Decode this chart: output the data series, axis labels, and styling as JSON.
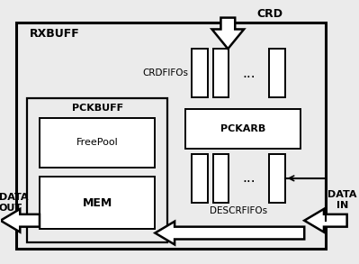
{
  "bg_color": "#ebebeb",
  "box_color": "#ffffff",
  "line_color": "#000000",
  "rxbuff_label": "RXBUFF",
  "crd_label": "CRD",
  "crdfifos_label": "CRDFIFOs",
  "pckarb_label": "PCKARB",
  "descrfifos_label": "DESCRFIFOs",
  "pckbuff_label": "PCKBUFF",
  "freepool_label": "FreePool",
  "mem_label": "MEM",
  "data_out_label": "DATA\nOUT",
  "data_in_label": "DATA\nIN",
  "dots": "..."
}
